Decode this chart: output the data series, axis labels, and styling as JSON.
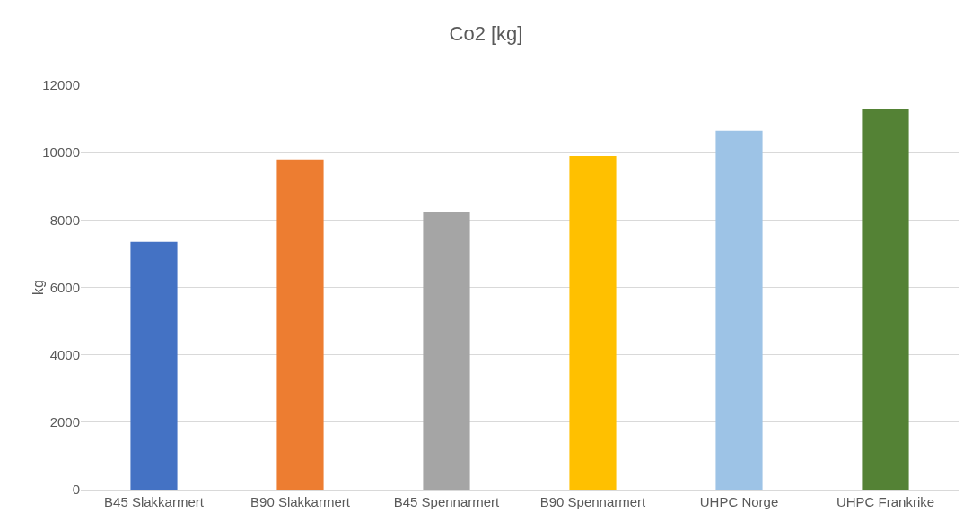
{
  "chart_data": {
    "type": "bar",
    "title": "Co2 [kg]",
    "ylabel": "kg",
    "categories": [
      "B45 Slakkarmert",
      "B90 Slakkarmert",
      "B45 Spennarmert",
      "B90 Spennarmert",
      "UHPC Norge",
      "UHPC Frankrike"
    ],
    "values": [
      7350,
      9800,
      8250,
      9900,
      10650,
      11300
    ],
    "colors": [
      "#4472c4",
      "#ed7d31",
      "#a5a5a5",
      "#ffc000",
      "#9dc3e6",
      "#548235"
    ],
    "ylim": [
      0,
      12000
    ],
    "yticks": [
      0,
      2000,
      4000,
      6000,
      8000,
      10000,
      12000
    ],
    "grid": "y"
  }
}
